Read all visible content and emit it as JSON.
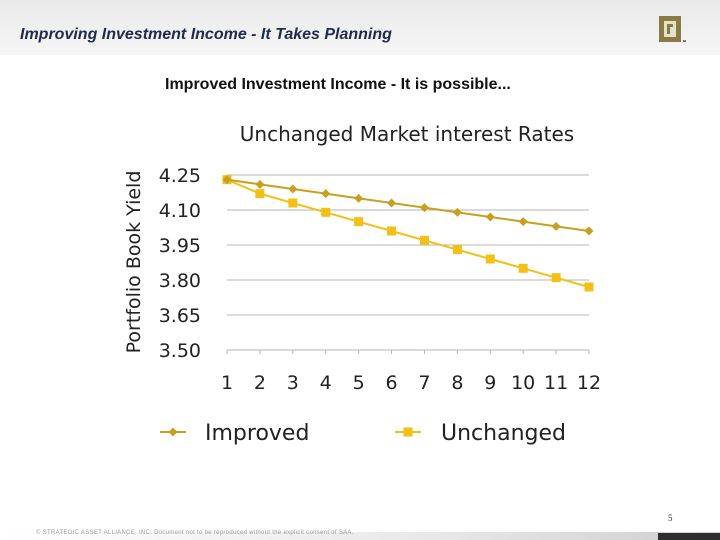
{
  "slide": {
    "title": "Improving Investment Income - It Takes Planning",
    "subtitle": "Improved Investment Income - It is possible...",
    "page_number": "5",
    "footer": "© STRATEGIC ASSET ALLIANCE, INC.  Document not to be reproduced without the explicit consent of SAA."
  },
  "colors": {
    "improved": "#c8a01e",
    "unchanged": "#f2c016",
    "grid": "#b5b5b5"
  },
  "chart_data": {
    "type": "line",
    "title": "Unchanged Market interest Rates",
    "xlabel": "",
    "ylabel": "Portfolio Book Yield",
    "x": [
      1,
      2,
      3,
      4,
      5,
      6,
      7,
      8,
      9,
      10,
      11,
      12
    ],
    "x_tick_labels": [
      "1",
      "2",
      "3",
      "4",
      "5",
      "6",
      "7",
      "8",
      "9",
      "10",
      "11",
      "12"
    ],
    "y_ticks": [
      3.5,
      3.65,
      3.8,
      3.95,
      4.1,
      4.25
    ],
    "y_tick_labels": [
      "3.50",
      "3.65",
      "3.80",
      "3.95",
      "4.10",
      "4.25"
    ],
    "ylim": [
      3.5,
      4.25
    ],
    "grid": true,
    "legend_position": "bottom",
    "series": [
      {
        "name": "Improved",
        "marker": "diamond",
        "values": [
          4.23,
          4.21,
          4.19,
          4.17,
          4.15,
          4.13,
          4.11,
          4.09,
          4.07,
          4.05,
          4.03,
          4.01
        ]
      },
      {
        "name": "Unchanged",
        "marker": "square",
        "values": [
          4.23,
          4.17,
          4.13,
          4.09,
          4.05,
          4.01,
          3.97,
          3.93,
          3.89,
          3.85,
          3.81,
          3.77
        ]
      }
    ]
  }
}
